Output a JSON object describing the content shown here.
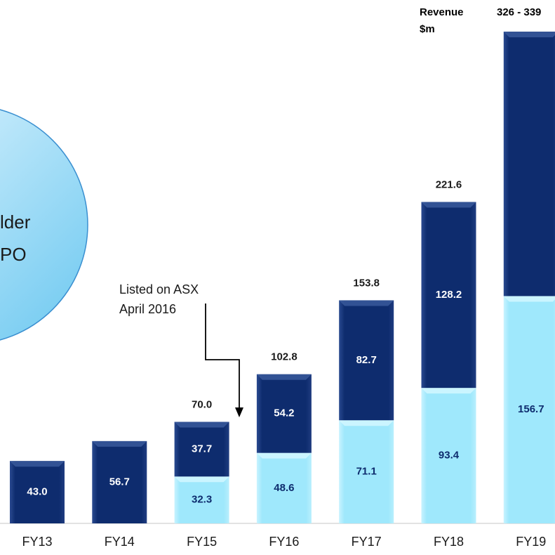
{
  "chart_data": {
    "type": "stacked-bar",
    "categories": [
      "FY13",
      "FY14",
      "FY15",
      "FY16",
      "FY17",
      "FY18",
      "FY19"
    ],
    "series": [
      {
        "color": "#9fe8fc",
        "values": [
          null,
          null,
          32.3,
          48.6,
          71.1,
          93.4,
          156.7
        ],
        "value_labels": [
          null,
          null,
          "32.3",
          "48.6",
          "71.1",
          "93.4",
          "156.7"
        ]
      },
      {
        "color": "#0e2c6e",
        "values": [
          43.0,
          56.7,
          37.7,
          54.2,
          82.7,
          128.2,
          182.3
        ],
        "value_labels": [
          "43.0",
          "56.7",
          "37.7",
          "54.2",
          "82.7",
          "128.2",
          null
        ]
      }
    ],
    "totals": {
      "values": [
        null,
        null,
        70.0,
        102.8,
        153.8,
        221.6,
        null
      ],
      "value_labels": [
        null,
        null,
        "70.0",
        "102.8",
        "153.8",
        "221.6",
        null
      ]
    },
    "range_label": "326 - 339",
    "unit_label": [
      "Revenue",
      "$m"
    ],
    "annotation": [
      "Listed on ASX",
      "April 2016"
    ],
    "circle_text": [
      "lder",
      "PO"
    ],
    "ylim": [
      0,
      340
    ]
  }
}
